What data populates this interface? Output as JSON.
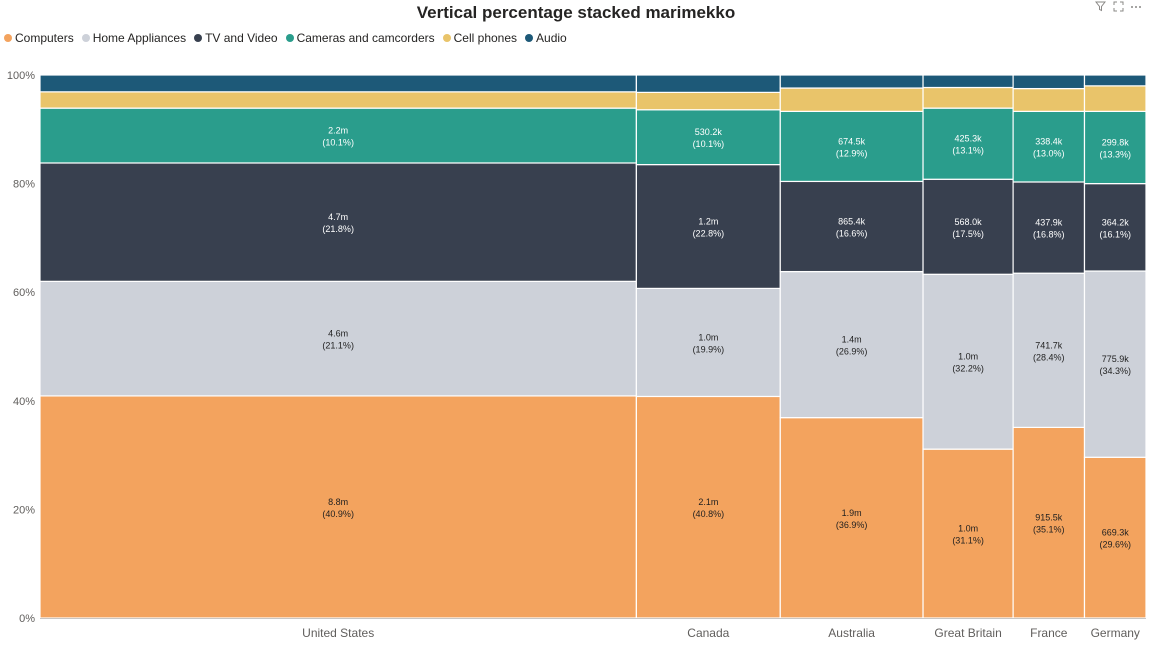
{
  "title": "Vertical percentage stacked marimekko",
  "toolbar": {
    "filter_icon": "filter-icon",
    "focus_icon": "focus-mode-icon",
    "more_icon": "more-options-icon"
  },
  "legend": [
    {
      "name": "Computers",
      "color": "#F3A35E"
    },
    {
      "name": "Home Appliances",
      "color": "#CDD1D9"
    },
    {
      "name": "TV and Video",
      "color": "#38404F"
    },
    {
      "name": "Cameras and camcorders",
      "color": "#2A9D8C"
    },
    {
      "name": "Cell phones",
      "color": "#E9C46A"
    },
    {
      "name": "Audio",
      "color": "#1D5978"
    }
  ],
  "chart_data": {
    "type": "marimekko",
    "title": "Vertical percentage stacked marimekko",
    "ylim": [
      0,
      100
    ],
    "yticks": [
      0,
      20,
      40,
      60,
      80,
      100
    ],
    "ytick_labels": [
      "0%",
      "20%",
      "40%",
      "60%",
      "80%",
      "100%"
    ],
    "legend_position": "top-left",
    "categories": [
      "United States",
      "Canada",
      "Australia",
      "Great Britain",
      "France",
      "Germany"
    ],
    "category_width_share": [
      0.543,
      0.131,
      0.13,
      0.082,
      0.065,
      0.056
    ],
    "series": [
      {
        "name": "Computers",
        "percent": [
          40.9,
          40.8,
          36.9,
          31.1,
          35.1,
          29.6
        ],
        "labels": [
          "8.8m",
          "2.1m",
          "1.9m",
          "1.0m",
          "915.5k",
          "669.3k"
        ],
        "percent_labels": [
          "(40.9%)",
          "(40.8%)",
          "(36.9%)",
          "(31.1%)",
          "(35.1%)",
          "(29.6%)"
        ]
      },
      {
        "name": "Home Appliances",
        "percent": [
          21.1,
          19.9,
          26.9,
          32.2,
          28.4,
          34.3
        ],
        "labels": [
          "4.6m",
          "1.0m",
          "1.4m",
          "1.0m",
          "741.7k",
          "775.9k"
        ],
        "percent_labels": [
          "(21.1%)",
          "(19.9%)",
          "(26.9%)",
          "(32.2%)",
          "(28.4%)",
          "(34.3%)"
        ]
      },
      {
        "name": "TV and Video",
        "percent": [
          21.8,
          22.8,
          16.6,
          17.5,
          16.8,
          16.1
        ],
        "labels": [
          "4.7m",
          "1.2m",
          "865.4k",
          "568.0k",
          "437.9k",
          "364.2k"
        ],
        "percent_labels": [
          "(21.8%)",
          "(22.8%)",
          "(16.6%)",
          "(17.5%)",
          "(16.8%)",
          "(16.1%)"
        ]
      },
      {
        "name": "Cameras and camcorders",
        "percent": [
          10.1,
          10.1,
          12.9,
          13.1,
          13.0,
          13.3
        ],
        "labels": [
          "2.2m",
          "530.2k",
          "674.5k",
          "425.3k",
          "338.4k",
          "299.8k"
        ],
        "percent_labels": [
          "(10.1%)",
          "(10.1%)",
          "(12.9%)",
          "(13.1%)",
          "(13.0%)",
          "(13.3%)"
        ]
      },
      {
        "name": "Cell phones",
        "percent": [
          3.0,
          3.2,
          4.3,
          3.8,
          4.2,
          4.7
        ],
        "labels": null,
        "percent_labels": null
      },
      {
        "name": "Audio",
        "percent": [
          3.1,
          3.2,
          2.4,
          2.3,
          2.5,
          2.0
        ],
        "labels": null,
        "percent_labels": null
      }
    ]
  }
}
